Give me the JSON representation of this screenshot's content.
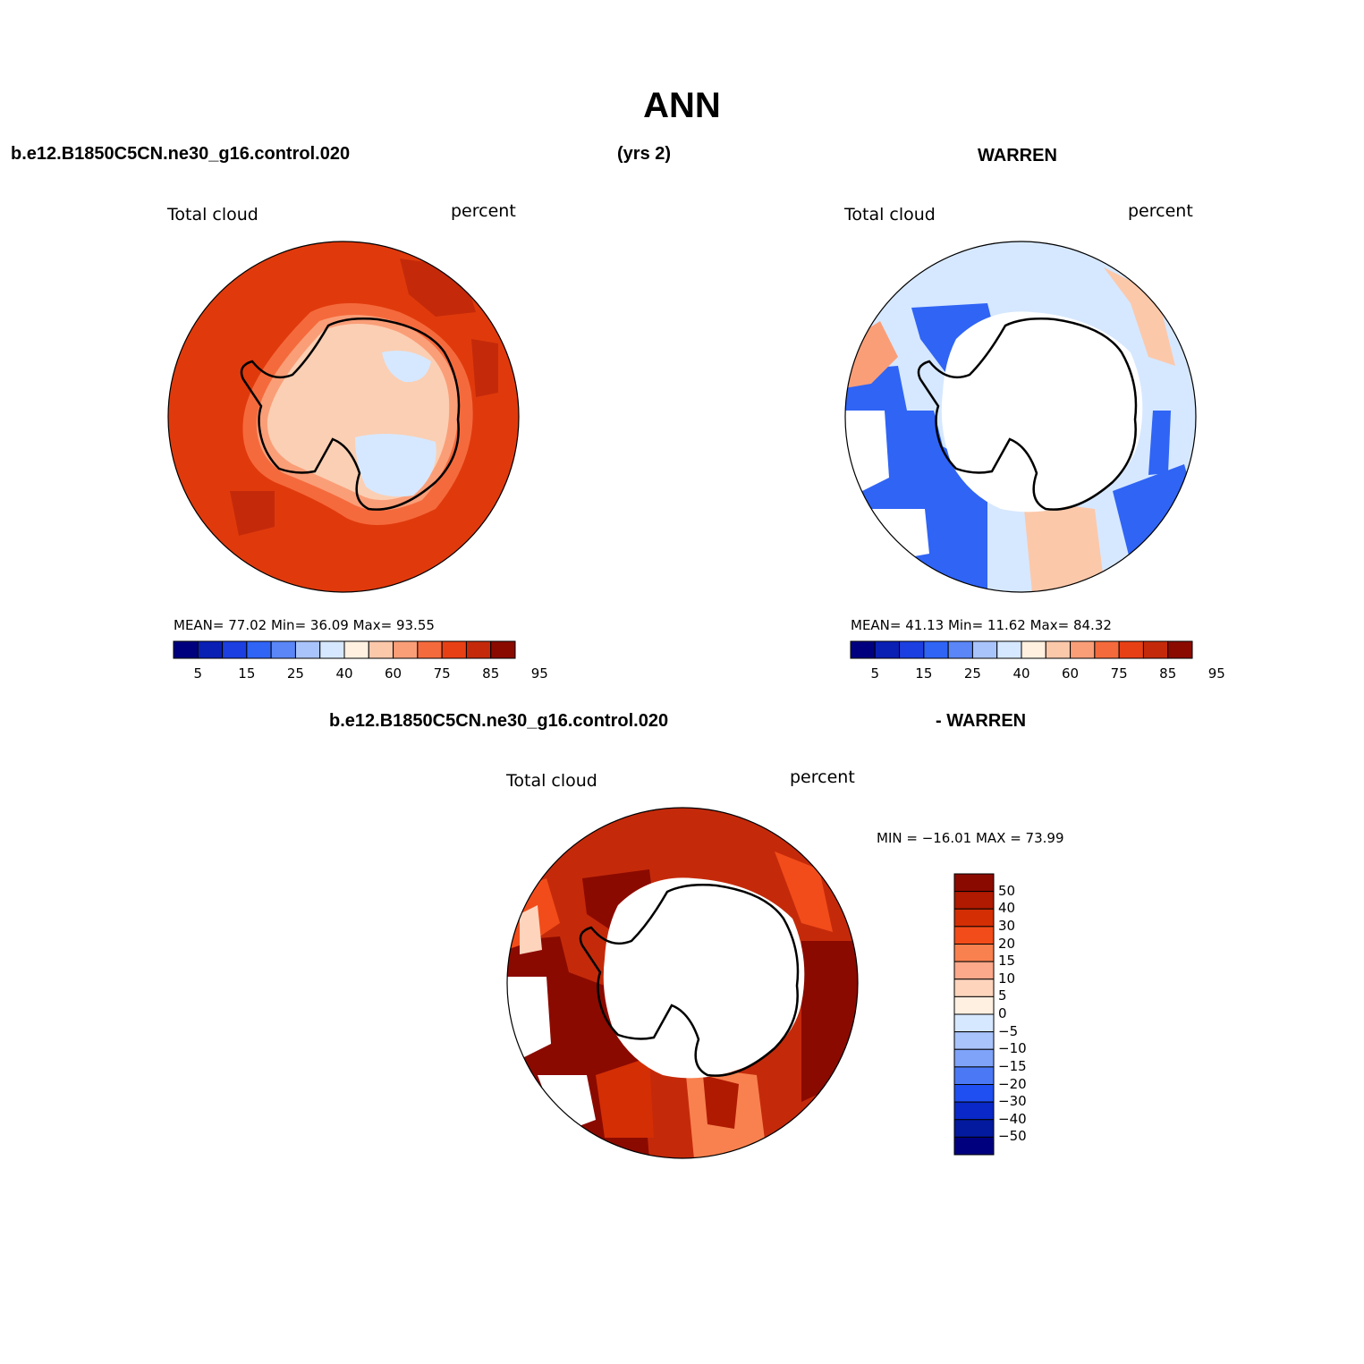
{
  "figure": {
    "title": "ANN",
    "case_name": "b.e12.B1850C5CN.ne30_g16.control.020",
    "years": "(yrs 2)",
    "obs_name": "WARREN",
    "diff_case_name": "b.e12.B1850C5CN.ne30_g16.control.020",
    "diff_obs_name": "- WARREN"
  },
  "panels": [
    {
      "id": "model",
      "variable": "Total cloud",
      "units": "percent",
      "stats_text": "MEAN=   77.02   Min=   36.09   Max=   93.55",
      "colors": {
        "background": "#e03a0c",
        "interior": "#fbcfb3"
      }
    },
    {
      "id": "obs",
      "variable": "Total cloud",
      "units": "percent",
      "stats_text": "MEAN=   41.13   Min=   11.62   Max=   84.32",
      "colors": {
        "background": "#d6e8ff",
        "interior": "#ffffff"
      }
    },
    {
      "id": "diff",
      "variable": "Total cloud",
      "units": "percent",
      "minmax_text": "MIN = −16.01  MAX =   73.99",
      "colors": {
        "background": "#c42a0a",
        "interior": "#ffffff"
      }
    }
  ],
  "colorbar_horizontal": {
    "labels": [
      "5",
      "15",
      "25",
      "40",
      "60",
      "75",
      "85",
      "95"
    ],
    "colors": [
      "#00007f",
      "#0a1fb3",
      "#1b3fe0",
      "#2f64f5",
      "#5a86f7",
      "#a9c4fb",
      "#d6e8ff",
      "#fff0e0",
      "#fcc8aa",
      "#fa9e78",
      "#f56a3c",
      "#e84015",
      "#c42a0a",
      "#8b0a00"
    ]
  },
  "colorbar_vertical": {
    "labels": [
      "50",
      "40",
      "30",
      "20",
      "15",
      "10",
      "5",
      "0",
      "−5",
      "−10",
      "−15",
      "−20",
      "−30",
      "−40",
      "−50"
    ],
    "colors": [
      "#8b0a00",
      "#b01a00",
      "#d42e05",
      "#f24c1a",
      "#f9814f",
      "#fca88a",
      "#fed4bc",
      "#fff0e2",
      "#d6e8ff",
      "#a9c4fb",
      "#7fa3f8",
      "#4b79f6",
      "#1f4ff0",
      "#0a28c8",
      "#031a9e",
      "#00007f"
    ]
  }
}
